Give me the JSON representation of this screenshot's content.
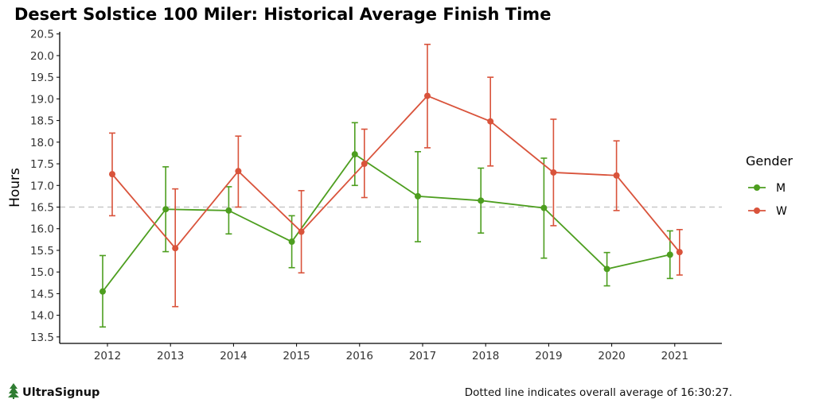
{
  "title": "Desert Solstice 100 Miler: Historical Average Finish Time",
  "caption": "Dotted line indicates overall average of 16:30:27.",
  "brand": {
    "name": "UltraSignup",
    "icon": "tree-logo-icon"
  },
  "colors": {
    "M": "#4d9e1f",
    "W": "#d9533b",
    "reference": "#c8c8c8",
    "axis": "#000000"
  },
  "chart_data": {
    "type": "line",
    "title": "Desert Solstice 100 Miler: Historical Average Finish Time",
    "xlabel": "",
    "ylabel": "Hours",
    "categories": [
      "2012",
      "2013",
      "2014",
      "2015",
      "2016",
      "2017",
      "2018",
      "2019",
      "2020",
      "2021"
    ],
    "ylim": [
      13.35,
      20.55
    ],
    "yticks": [
      "13.5",
      "14.0",
      "14.5",
      "15.0",
      "15.5",
      "16.0",
      "16.5",
      "17.0",
      "17.5",
      "18.0",
      "18.5",
      "19.0",
      "19.5",
      "20.0",
      "20.5"
    ],
    "reference_line": 16.5,
    "grid": false,
    "legend": {
      "title": "Gender",
      "position": "right"
    },
    "series": [
      {
        "name": "M",
        "values": [
          14.55,
          16.45,
          16.42,
          15.7,
          17.72,
          16.75,
          16.65,
          16.48,
          15.07,
          15.4
        ],
        "lower": [
          13.73,
          15.47,
          15.88,
          15.1,
          17.0,
          15.7,
          15.9,
          15.32,
          14.68,
          14.85
        ],
        "upper": [
          15.38,
          17.43,
          16.97,
          16.3,
          18.45,
          17.78,
          17.4,
          17.63,
          15.45,
          15.95
        ]
      },
      {
        "name": "W",
        "values": [
          17.26,
          15.55,
          17.33,
          15.93,
          17.5,
          19.07,
          18.48,
          17.3,
          17.23,
          15.46
        ],
        "lower": [
          16.3,
          14.2,
          16.5,
          14.98,
          16.72,
          17.87,
          17.45,
          16.07,
          16.42,
          14.93
        ],
        "upper": [
          18.21,
          16.92,
          18.14,
          16.88,
          18.3,
          20.26,
          19.5,
          18.53,
          18.03,
          15.98
        ]
      }
    ]
  }
}
